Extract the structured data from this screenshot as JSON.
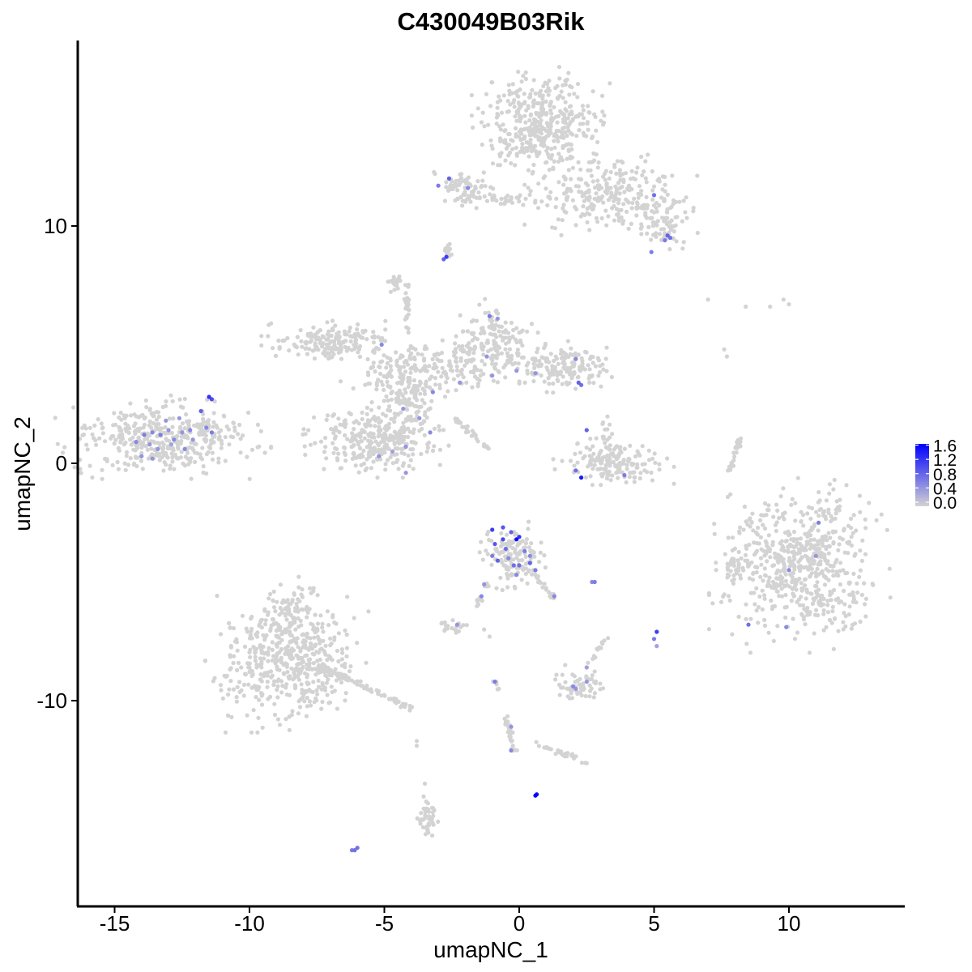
{
  "chart_data": {
    "type": "scatter",
    "title": "C430049B03Rik",
    "xlabel": "umapNC_1",
    "ylabel": "umapNC_2",
    "xlim": [
      -16.4,
      14.3
    ],
    "ylim": [
      -18.4,
      17.9
    ],
    "x_ticks": [
      -15,
      -10,
      -5,
      0,
      5,
      10
    ],
    "x_tick_labels": [
      "-15",
      "-10",
      "-5",
      "0",
      "5",
      "10"
    ],
    "y_ticks": [
      10,
      0,
      -10
    ],
    "y_tick_labels": [
      "10",
      "0",
      "-10"
    ],
    "grid": false,
    "color_scale": {
      "low_color": "#d3d3d3",
      "high_color": "#0000ff",
      "min": 0,
      "max": 1.7,
      "legend_ticks": [
        "1.6",
        "1.2",
        "0.8",
        "0.4",
        "0.0"
      ],
      "legend_values": [
        1.6,
        1.2,
        0.8,
        0.4,
        0.0
      ],
      "legend_placement": "right"
    },
    "clusters": [
      {
        "cx": 0.8,
        "cy": 14.3,
        "rx": 1.6,
        "ry": 1.5,
        "n": 420
      },
      {
        "cx": 3.4,
        "cy": 11.4,
        "rx": 2.0,
        "ry": 1.2,
        "n": 260
      },
      {
        "cx": 5.2,
        "cy": 10.1,
        "rx": 0.9,
        "ry": 0.8,
        "n": 70
      },
      {
        "cx": -2.2,
        "cy": 11.6,
        "rx": 0.9,
        "ry": 0.5,
        "n": 70
      },
      {
        "cx": -0.6,
        "cy": 11.1,
        "rx": 1.4,
        "ry": 0.25,
        "n": 40
      },
      {
        "cx": -13.2,
        "cy": 1.1,
        "rx": 2.5,
        "ry": 1.1,
        "n": 420
      },
      {
        "cx": -7.0,
        "cy": 5.1,
        "rx": 1.6,
        "ry": 0.6,
        "n": 180
      },
      {
        "cx": -3.8,
        "cy": 3.9,
        "rx": 1.8,
        "ry": 0.8,
        "n": 200
      },
      {
        "cx": -1.0,
        "cy": 5.0,
        "rx": 1.2,
        "ry": 1.2,
        "n": 180
      },
      {
        "cx": 1.6,
        "cy": 4.1,
        "rx": 1.3,
        "ry": 0.7,
        "n": 160
      },
      {
        "cx": -5.3,
        "cy": 1.0,
        "rx": 1.7,
        "ry": 1.0,
        "n": 320
      },
      {
        "cx": -4.1,
        "cy": 2.6,
        "rx": 0.7,
        "ry": 0.9,
        "n": 80
      },
      {
        "cx": -4.6,
        "cy": 7.6,
        "rx": 0.25,
        "ry": 0.3,
        "n": 20
      },
      {
        "cx": 3.5,
        "cy": 0.0,
        "rx": 1.4,
        "ry": 0.6,
        "n": 150
      },
      {
        "cx": 3.2,
        "cy": 1.0,
        "rx": 0.4,
        "ry": 0.8,
        "n": 30
      },
      {
        "cx": 10.4,
        "cy": -4.3,
        "rx": 2.1,
        "ry": 2.3,
        "n": 620
      },
      {
        "cx": 8.0,
        "cy": -4.5,
        "rx": 0.3,
        "ry": 0.6,
        "n": 25
      },
      {
        "cx": -0.2,
        "cy": -3.9,
        "rx": 0.8,
        "ry": 0.9,
        "n": 130
      },
      {
        "cx": -8.6,
        "cy": -8.3,
        "rx": 1.9,
        "ry": 1.9,
        "n": 520
      },
      {
        "cx": -8.3,
        "cy": -6.2,
        "rx": 0.8,
        "ry": 0.9,
        "n": 60
      },
      {
        "cx": 2.3,
        "cy": -9.3,
        "rx": 0.6,
        "ry": 0.5,
        "n": 60
      },
      {
        "cx": -2.5,
        "cy": -6.9,
        "rx": 0.4,
        "ry": 0.25,
        "n": 20
      },
      {
        "cx": -3.4,
        "cy": -15.0,
        "rx": 0.25,
        "ry": 0.6,
        "n": 40
      }
    ],
    "strands": [
      {
        "x1": -4.2,
        "y1": 7.6,
        "x2": -4.1,
        "y2": 5.5,
        "n": 25
      },
      {
        "x1": -2.7,
        "y1": 2.2,
        "x2": -1.1,
        "y2": 0.6,
        "n": 30
      },
      {
        "x1": -7.5,
        "y1": -8.5,
        "x2": -3.9,
        "y2": -10.4,
        "n": 70
      },
      {
        "x1": -2.6,
        "y1": 8.7,
        "x2": -2.7,
        "y2": 9.3,
        "n": 12
      },
      {
        "x1": 8.2,
        "y1": 1.1,
        "x2": 7.8,
        "y2": -0.3,
        "n": 25
      },
      {
        "x1": 0.4,
        "y1": -4.5,
        "x2": 1.3,
        "y2": -5.7,
        "n": 25
      },
      {
        "x1": -1.2,
        "y1": -5.0,
        "x2": -1.6,
        "y2": -6.1,
        "n": 15
      },
      {
        "x1": -0.5,
        "y1": -10.6,
        "x2": -0.2,
        "y2": -12.1,
        "n": 25
      },
      {
        "x1": 0.6,
        "y1": -11.8,
        "x2": 2.5,
        "y2": -12.6,
        "n": 30
      },
      {
        "x1": 3.3,
        "y1": -7.3,
        "x2": 2.6,
        "y2": -8.4,
        "n": 12
      },
      {
        "x1": -0.9,
        "y1": -9.1,
        "x2": -0.8,
        "y2": -9.6,
        "n": 5
      }
    ],
    "isolated_points": [
      {
        "x": 7.0,
        "y": 6.9,
        "v": 0
      },
      {
        "x": 8.4,
        "y": 6.6,
        "v": 0
      },
      {
        "x": 9.3,
        "y": 6.6,
        "v": 0
      },
      {
        "x": 9.8,
        "y": 6.9,
        "v": 0
      },
      {
        "x": 10.0,
        "y": 6.7,
        "v": 0
      },
      {
        "x": 7.6,
        "y": 4.8,
        "v": 0
      },
      {
        "x": 7.7,
        "y": 4.5,
        "v": 0
      },
      {
        "x": -6.1,
        "y": -16.3,
        "v": 0.8
      },
      {
        "x": -6.0,
        "y": -16.2,
        "v": 0.8
      },
      {
        "x": -6.2,
        "y": -16.3,
        "v": 0.7
      },
      {
        "x": 0.6,
        "y": -14.0,
        "v": 1.7
      },
      {
        "x": 0.65,
        "y": -13.95,
        "v": 1.6
      },
      {
        "x": -3.8,
        "y": -11.7,
        "v": 0
      },
      {
        "x": -3.8,
        "y": -11.9,
        "v": 0
      },
      {
        "x": -3.5,
        "y": -13.5,
        "v": 0
      },
      {
        "x": 5.1,
        "y": -7.1,
        "v": 1.2
      },
      {
        "x": 5.0,
        "y": -7.4,
        "v": 0.7
      },
      {
        "x": 5.1,
        "y": -7.7,
        "v": 0.4
      },
      {
        "x": -1.3,
        "y": -7.0,
        "v": 0
      },
      {
        "x": -1.1,
        "y": -7.3,
        "v": 0
      },
      {
        "x": 2.8,
        "y": -5.0,
        "v": 0.7
      },
      {
        "x": 2.7,
        "y": -5.0,
        "v": 0.6
      },
      {
        "x": -2.7,
        "y": 8.7,
        "v": 1.2
      },
      {
        "x": -2.8,
        "y": 8.6,
        "v": 0.9
      }
    ],
    "expressing_points": [
      {
        "x": -11.5,
        "y": 2.8,
        "v": 1.3
      },
      {
        "x": -11.4,
        "y": 2.7,
        "v": 1.1
      },
      {
        "x": -11.8,
        "y": 2.2,
        "v": 0.9
      },
      {
        "x": -13.9,
        "y": 1.2,
        "v": 0.7
      },
      {
        "x": -13.6,
        "y": 1.3,
        "v": 0.6
      },
      {
        "x": -13.3,
        "y": 1.2,
        "v": 0.7
      },
      {
        "x": -13.0,
        "y": 1.4,
        "v": 0.5
      },
      {
        "x": -12.8,
        "y": 1.0,
        "v": 0.6
      },
      {
        "x": -12.5,
        "y": 1.3,
        "v": 0.5
      },
      {
        "x": -12.2,
        "y": 1.4,
        "v": 0.6
      },
      {
        "x": -12.1,
        "y": 1.0,
        "v": 0.5
      },
      {
        "x": -11.6,
        "y": 1.5,
        "v": 0.6
      },
      {
        "x": -11.4,
        "y": 1.3,
        "v": 0.7
      },
      {
        "x": -13.7,
        "y": 0.8,
        "v": 0.5
      },
      {
        "x": -14.2,
        "y": 0.9,
        "v": 0.6
      },
      {
        "x": -13.4,
        "y": 0.6,
        "v": 0.5
      },
      {
        "x": -12.9,
        "y": 0.8,
        "v": 0.4
      },
      {
        "x": -12.4,
        "y": 0.6,
        "v": 0.6
      },
      {
        "x": -13.1,
        "y": 1.8,
        "v": 0.5
      },
      {
        "x": -12.6,
        "y": 1.9,
        "v": 0.5
      },
      {
        "x": -14.0,
        "y": 0.3,
        "v": 0.5
      },
      {
        "x": -13.6,
        "y": 0.2,
        "v": 0.5
      },
      {
        "x": -2.6,
        "y": 12.0,
        "v": 0.9
      },
      {
        "x": -3.0,
        "y": 11.7,
        "v": 0.7
      },
      {
        "x": -1.9,
        "y": 11.6,
        "v": 0.6
      },
      {
        "x": 5.0,
        "y": 11.3,
        "v": 0.8
      },
      {
        "x": 5.5,
        "y": 9.6,
        "v": 0.9
      },
      {
        "x": 5.6,
        "y": 9.5,
        "v": 0.8
      },
      {
        "x": 5.4,
        "y": 9.4,
        "v": 0.7
      },
      {
        "x": 4.9,
        "y": 8.9,
        "v": 0.7
      },
      {
        "x": -5.1,
        "y": 5.0,
        "v": 0.6
      },
      {
        "x": -1.1,
        "y": 6.2,
        "v": 0.7
      },
      {
        "x": -0.8,
        "y": 6.1,
        "v": 0.5
      },
      {
        "x": -1.2,
        "y": 4.5,
        "v": 0.5
      },
      {
        "x": -0.1,
        "y": 3.9,
        "v": 0.5
      },
      {
        "x": 0.6,
        "y": 3.8,
        "v": 0.5
      },
      {
        "x": 2.1,
        "y": 4.4,
        "v": 0.6
      },
      {
        "x": 2.2,
        "y": 3.4,
        "v": 0.9
      },
      {
        "x": 2.3,
        "y": 3.3,
        "v": 0.8
      },
      {
        "x": -2.2,
        "y": 3.4,
        "v": 0.5
      },
      {
        "x": -1.0,
        "y": 3.7,
        "v": 0.5
      },
      {
        "x": -3.2,
        "y": 3.0,
        "v": 0.6
      },
      {
        "x": -4.3,
        "y": 2.3,
        "v": 0.5
      },
      {
        "x": -3.7,
        "y": 1.9,
        "v": 0.5
      },
      {
        "x": -3.3,
        "y": 1.3,
        "v": 0.6
      },
      {
        "x": -4.2,
        "y": 0.7,
        "v": 0.5
      },
      {
        "x": -5.2,
        "y": 0.3,
        "v": 0.5
      },
      {
        "x": -4.7,
        "y": 0.5,
        "v": 0.4
      },
      {
        "x": -4.2,
        "y": -0.4,
        "v": 0.5
      },
      {
        "x": 2.5,
        "y": 1.4,
        "v": 0.9
      },
      {
        "x": 2.1,
        "y": -0.3,
        "v": 0.8
      },
      {
        "x": 2.3,
        "y": -0.6,
        "v": 1.5
      },
      {
        "x": 3.9,
        "y": -0.5,
        "v": 0.7
      },
      {
        "x": 11.1,
        "y": -2.5,
        "v": 0.7
      },
      {
        "x": 11.0,
        "y": -3.9,
        "v": 0.5
      },
      {
        "x": 10.0,
        "y": -4.5,
        "v": 0.6
      },
      {
        "x": 8.5,
        "y": -6.8,
        "v": 0.8
      },
      {
        "x": 9.9,
        "y": -6.9,
        "v": 0.6
      },
      {
        "x": -1.0,
        "y": -2.8,
        "v": 1.2
      },
      {
        "x": -0.6,
        "y": -2.7,
        "v": 1.0
      },
      {
        "x": -0.3,
        "y": -2.9,
        "v": 0.9
      },
      {
        "x": -0.1,
        "y": -3.2,
        "v": 1.6
      },
      {
        "x": 0.0,
        "y": -3.1,
        "v": 1.3
      },
      {
        "x": -0.9,
        "y": -3.4,
        "v": 1.0
      },
      {
        "x": -0.5,
        "y": -3.6,
        "v": 0.8
      },
      {
        "x": 0.2,
        "y": -3.7,
        "v": 0.7
      },
      {
        "x": -0.4,
        "y": -4.0,
        "v": 0.6
      },
      {
        "x": -0.8,
        "y": -4.1,
        "v": 0.9
      },
      {
        "x": -0.2,
        "y": -4.3,
        "v": 0.8
      },
      {
        "x": 0.0,
        "y": -4.3,
        "v": 0.8
      },
      {
        "x": 0.4,
        "y": -4.2,
        "v": 0.9
      },
      {
        "x": 0.6,
        "y": -4.5,
        "v": 0.7
      },
      {
        "x": 0.4,
        "y": -3.9,
        "v": 0.6
      },
      {
        "x": -0.1,
        "y": -4.7,
        "v": 0.6
      },
      {
        "x": -1.0,
        "y": -3.9,
        "v": 0.7
      },
      {
        "x": -0.6,
        "y": -3.2,
        "v": 1.1
      },
      {
        "x": 1.3,
        "y": -5.6,
        "v": 0.6
      },
      {
        "x": -1.3,
        "y": -5.1,
        "v": 0.5
      },
      {
        "x": -1.4,
        "y": -5.6,
        "v": 0.6
      },
      {
        "x": -2.3,
        "y": -6.8,
        "v": 0.5
      },
      {
        "x": 2.0,
        "y": -9.4,
        "v": 0.6
      },
      {
        "x": 2.1,
        "y": -9.5,
        "v": 0.5
      },
      {
        "x": 2.5,
        "y": -9.2,
        "v": 0.5
      },
      {
        "x": 2.5,
        "y": -8.6,
        "v": 0.4
      },
      {
        "x": -0.9,
        "y": -9.2,
        "v": 0.7
      },
      {
        "x": -0.3,
        "y": -11.1,
        "v": 0.5
      },
      {
        "x": -0.3,
        "y": -12.1,
        "v": 0.6
      }
    ]
  }
}
